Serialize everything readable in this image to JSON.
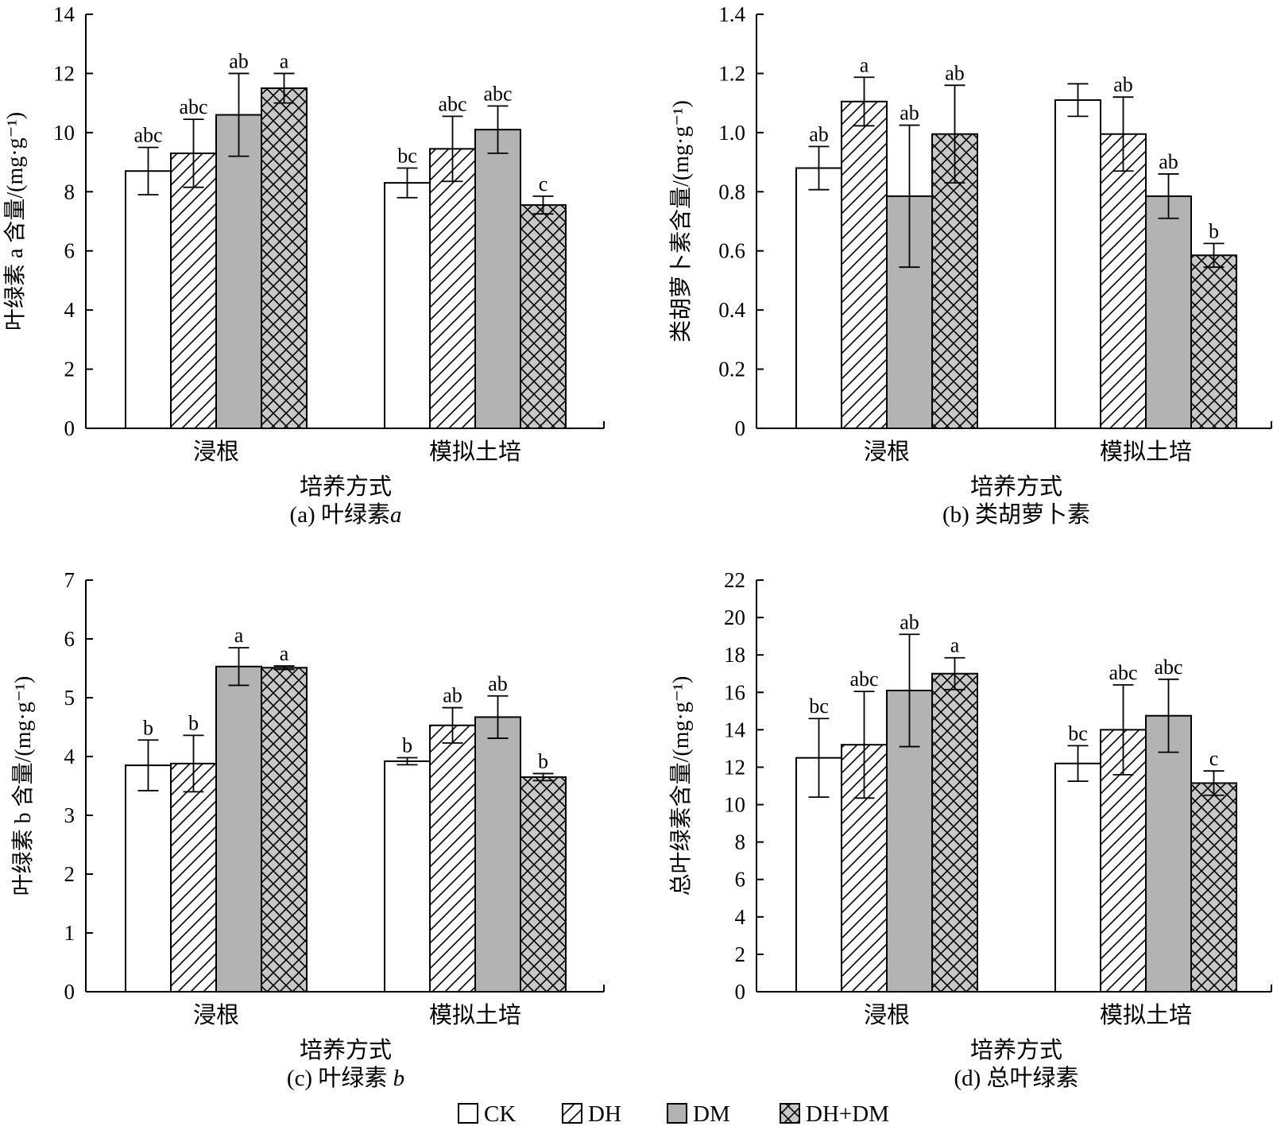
{
  "legend": {
    "items": [
      {
        "label": "CK",
        "pattern": "white"
      },
      {
        "label": "DH",
        "pattern": "hatch"
      },
      {
        "label": "DM",
        "pattern": "gray"
      },
      {
        "label": "DH+DM",
        "pattern": "cross"
      }
    ]
  },
  "colors": {
    "dm_fill": "#b3b3b3",
    "cross_bg": "#c8c8c8",
    "line": "#000000",
    "bg": "#ffffff"
  },
  "chart_data": [
    {
      "id": "a",
      "type": "bar",
      "caption": "(a) 叶绿素a",
      "caption_parts": [
        "(a) 叶绿素",
        "a"
      ],
      "xlabel": "培养方式",
      "ylabel": "叶绿素 a 含量/(mg·g⁻¹)",
      "categories": [
        "浸根",
        "模拟土培"
      ],
      "ylim": [
        0,
        14
      ],
      "yticks": [
        0,
        2,
        4,
        6,
        8,
        10,
        12,
        14
      ],
      "ytick_labels": [
        "0",
        "2",
        "4",
        "6",
        "8",
        "10",
        "12",
        "14"
      ],
      "series": [
        {
          "name": "CK",
          "values": [
            8.7,
            8.3
          ],
          "errors": [
            0.8,
            0.5
          ],
          "labels": [
            "abc",
            "bc"
          ]
        },
        {
          "name": "DH",
          "values": [
            9.3,
            9.45
          ],
          "errors": [
            1.15,
            1.1
          ],
          "labels": [
            "abc",
            "abc"
          ]
        },
        {
          "name": "DM",
          "values": [
            10.6,
            10.1
          ],
          "errors": [
            1.4,
            0.8
          ],
          "labels": [
            "ab",
            "abc"
          ]
        },
        {
          "name": "DH+DM",
          "values": [
            11.5,
            7.55
          ],
          "errors": [
            0.5,
            0.3
          ],
          "labels": [
            "a",
            "c"
          ]
        }
      ]
    },
    {
      "id": "b",
      "type": "bar",
      "caption": "(b) 类胡萝卜素",
      "caption_parts": [
        "(b) 类胡萝卜素",
        ""
      ],
      "xlabel": "培养方式",
      "ylabel": "类胡萝卜素含量/(mg·g⁻¹)",
      "categories": [
        "浸根",
        "模拟土培"
      ],
      "ylim": [
        0,
        1.4
      ],
      "yticks": [
        0,
        0.2,
        0.4,
        0.6,
        0.8,
        1.0,
        1.2,
        1.4
      ],
      "ytick_labels": [
        "0",
        "0.2",
        "0.4",
        "0.6",
        "0.8",
        "1.0",
        "1.2",
        "1.4"
      ],
      "series": [
        {
          "name": "CK",
          "values": [
            0.88,
            1.11
          ],
          "errors": [
            0.073,
            0.055
          ],
          "labels": [
            "ab",
            ""
          ]
        },
        {
          "name": "DH",
          "values": [
            1.105,
            0.995
          ],
          "errors": [
            0.082,
            0.125
          ],
          "labels": [
            "a",
            "ab"
          ]
        },
        {
          "name": "DM",
          "values": [
            0.785,
            0.785
          ],
          "errors": [
            0.24,
            0.075
          ],
          "labels": [
            "ab",
            "ab"
          ]
        },
        {
          "name": "DH+DM",
          "values": [
            0.995,
            0.585
          ],
          "errors": [
            0.165,
            0.04
          ],
          "labels": [
            "ab",
            "b"
          ]
        }
      ]
    },
    {
      "id": "c",
      "type": "bar",
      "caption": "(c) 叶绿素 b",
      "caption_parts": [
        "(c) 叶绿素 ",
        "b"
      ],
      "xlabel": "培养方式",
      "ylabel": "叶绿素 b 含量/(mg·g⁻¹)",
      "categories": [
        "浸根",
        "模拟土培"
      ],
      "ylim": [
        0,
        7
      ],
      "yticks": [
        0,
        1,
        2,
        3,
        4,
        5,
        6,
        7
      ],
      "ytick_labels": [
        "0",
        "1",
        "2",
        "3",
        "4",
        "5",
        "6",
        "7"
      ],
      "series": [
        {
          "name": "CK",
          "values": [
            3.85,
            3.92
          ],
          "errors": [
            0.43,
            0.06
          ],
          "labels": [
            "b",
            "b"
          ]
        },
        {
          "name": "DH",
          "values": [
            3.88,
            4.53
          ],
          "errors": [
            0.48,
            0.3
          ],
          "labels": [
            "b",
            "ab"
          ]
        },
        {
          "name": "DM",
          "values": [
            5.53,
            4.67
          ],
          "errors": [
            0.32,
            0.36
          ],
          "labels": [
            "a",
            "ab"
          ]
        },
        {
          "name": "DH+DM",
          "values": [
            5.51,
            3.65
          ],
          "errors": [
            0.03,
            0.06
          ],
          "labels": [
            "a",
            "b"
          ]
        }
      ]
    },
    {
      "id": "d",
      "type": "bar",
      "caption": "(d) 总叶绿素",
      "caption_parts": [
        "(d) 总叶绿素",
        ""
      ],
      "xlabel": "培养方式",
      "ylabel": "总叶绿素含量/(mg·g⁻¹)",
      "categories": [
        "浸根",
        "模拟土培"
      ],
      "ylim": [
        0,
        22
      ],
      "yticks": [
        0,
        2,
        4,
        6,
        8,
        10,
        12,
        14,
        16,
        18,
        20,
        22
      ],
      "ytick_labels": [
        "0",
        "2",
        "4",
        "6",
        "8",
        "10",
        "12",
        "14",
        "16",
        "18",
        "20",
        "22"
      ],
      "series": [
        {
          "name": "CK",
          "values": [
            12.5,
            12.2
          ],
          "errors": [
            2.1,
            0.95
          ],
          "labels": [
            "bc",
            "bc"
          ]
        },
        {
          "name": "DH",
          "values": [
            13.2,
            14.0
          ],
          "errors": [
            2.85,
            2.4
          ],
          "labels": [
            "abc",
            "abc"
          ]
        },
        {
          "name": "DM",
          "values": [
            16.1,
            14.75
          ],
          "errors": [
            3.0,
            1.95
          ],
          "labels": [
            "ab",
            "abc"
          ]
        },
        {
          "name": "DH+DM",
          "values": [
            17.0,
            11.15
          ],
          "errors": [
            0.85,
            0.65
          ],
          "labels": [
            "a",
            "c"
          ]
        }
      ]
    }
  ]
}
